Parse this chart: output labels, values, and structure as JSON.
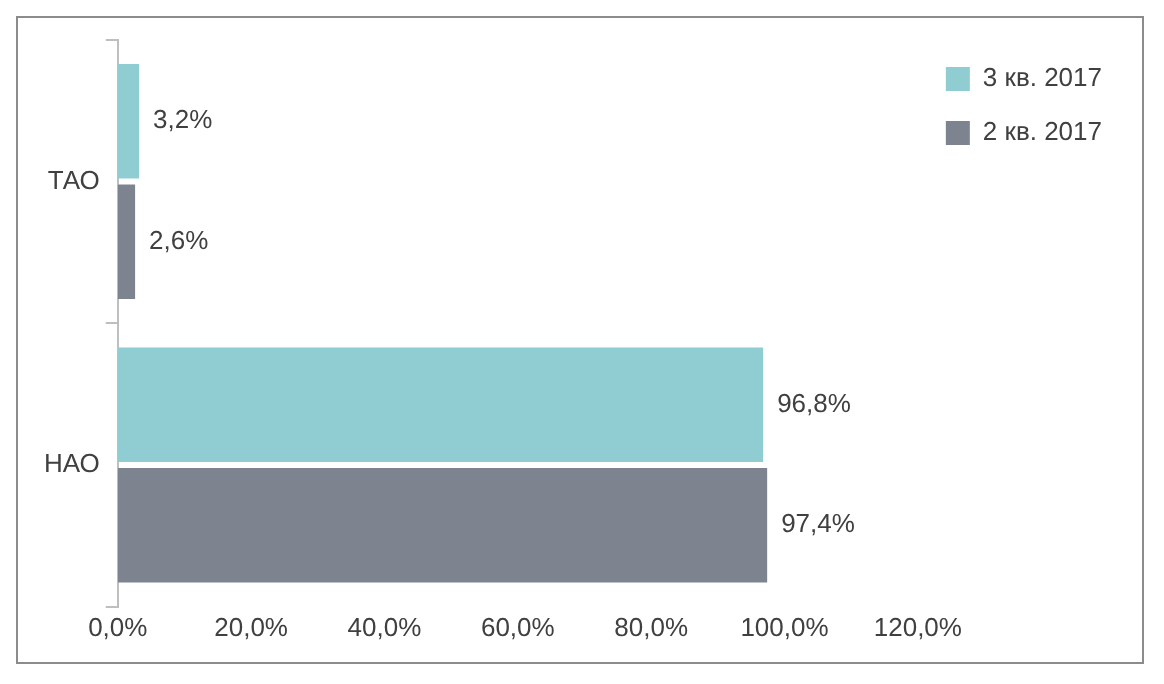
{
  "chart_data": {
    "type": "bar",
    "orientation": "horizontal",
    "categories": [
      "ТАО",
      "НАО"
    ],
    "series": [
      {
        "name": "3 кв. 2017",
        "color": "#8fcdd3",
        "values": [
          3.2,
          96.8
        ],
        "value_labels": [
          "3,2%",
          "96,8%"
        ]
      },
      {
        "name": "2 кв. 2017",
        "color": "#7e8390",
        "values": [
          2.6,
          97.4
        ],
        "value_labels": [
          "2,6%",
          "97,4%"
        ]
      }
    ],
    "xlim": [
      0,
      120
    ],
    "xticks": [
      {
        "value": 0,
        "label": "0,0%"
      },
      {
        "value": 20,
        "label": "20,0%"
      },
      {
        "value": 40,
        "label": "40,0%"
      },
      {
        "value": 60,
        "label": "60,0%"
      },
      {
        "value": 80,
        "label": "80,0%"
      },
      {
        "value": 100,
        "label": "100,0%"
      },
      {
        "value": 120,
        "label": "120,0%"
      }
    ],
    "grid": false,
    "legend": "top right"
  }
}
